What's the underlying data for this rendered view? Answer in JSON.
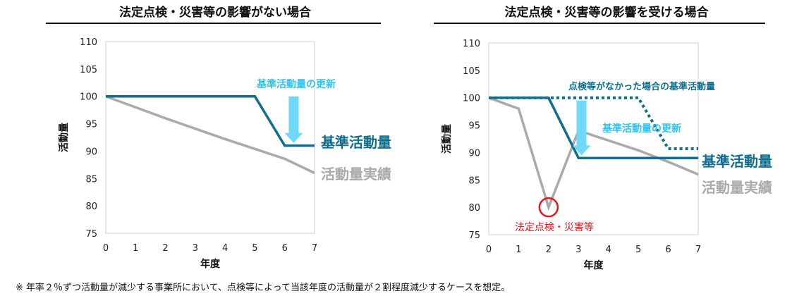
{
  "footnote": "※ 年率２％ずつ活動量が減少する事業所において、点検等によって当該年度の活動量が２割程度減少するケースを想定。",
  "colors": {
    "baseline": "#0f6e8e",
    "actual": "#aaaaaa",
    "update": "#6fd8fb",
    "update_text": "#2ec3f2",
    "event": "#e8141b"
  },
  "chart_data": [
    {
      "type": "line",
      "title": "法定点検・災害等の影響がない場合",
      "xlabel": "年度",
      "ylabel": "活動量",
      "x": [
        0,
        1,
        2,
        3,
        4,
        5,
        6,
        7
      ],
      "xlim": [
        0,
        7
      ],
      "ylim": [
        75,
        110
      ],
      "yticks": [
        75,
        80,
        85,
        90,
        95,
        100,
        105,
        110
      ],
      "grid": false,
      "series": [
        {
          "name": "基準活動量",
          "style": "solid",
          "values": [
            100,
            100,
            100,
            100,
            100,
            100,
            91,
            91
          ]
        },
        {
          "name": "活動量実績",
          "style": "solid",
          "values": [
            100,
            98,
            96,
            94.1,
            92.2,
            90.4,
            88.6,
            86
          ]
        }
      ],
      "annotations": [
        {
          "text": "基準活動量の更新",
          "type": "arrow",
          "x": 6.3,
          "from": 100,
          "to": 91.5
        }
      ]
    },
    {
      "type": "line",
      "title": "法定点検・災害等の影響を受ける場合",
      "xlabel": "年度",
      "ylabel": "活動量",
      "x": [
        0,
        1,
        2,
        3,
        4,
        5,
        6,
        7
      ],
      "xlim": [
        0,
        7
      ],
      "ylim": [
        75,
        110
      ],
      "yticks": [
        75,
        80,
        85,
        90,
        95,
        100,
        105,
        110
      ],
      "grid": false,
      "series": [
        {
          "name": "基準活動量",
          "style": "solid",
          "values": [
            100,
            100,
            100,
            89,
            89,
            89,
            89,
            89
          ]
        },
        {
          "name": "活動量実績",
          "style": "solid",
          "values": [
            100,
            98,
            80,
            94,
            92.2,
            90.4,
            88.3,
            86
          ]
        },
        {
          "name": "点検等がなかった場合の基準活動量",
          "style": "dotted",
          "values": [
            100,
            100,
            100,
            100,
            100,
            100,
            90.7,
            90.7
          ]
        }
      ],
      "annotations": [
        {
          "text": "基準活動量の更新",
          "type": "arrow",
          "x": 3.1,
          "from": 99.5,
          "to": 89.5
        },
        {
          "text": "法定点検・災害等",
          "type": "circle",
          "x": 2,
          "y": 80
        }
      ]
    }
  ]
}
